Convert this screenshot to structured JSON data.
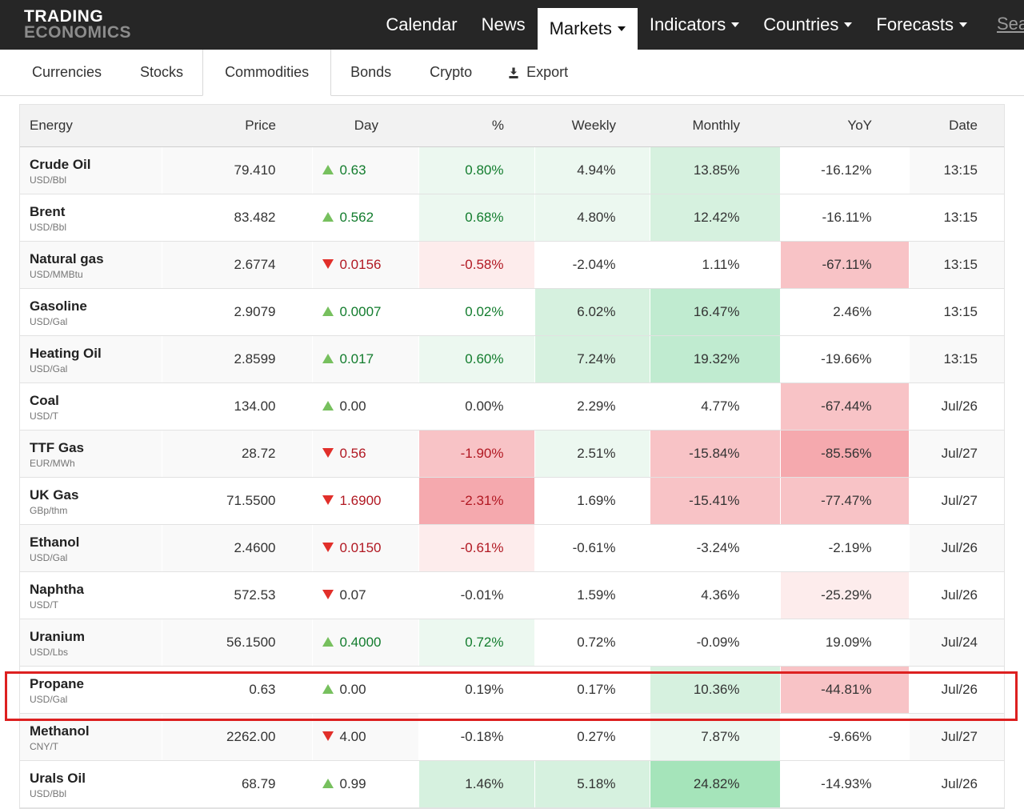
{
  "brand": {
    "line1": "TRADING",
    "line2": "ECONOMICS"
  },
  "top_nav": {
    "items": [
      {
        "label": "Calendar",
        "caret": false,
        "active": false
      },
      {
        "label": "News",
        "caret": false,
        "active": false
      },
      {
        "label": "Markets",
        "caret": true,
        "active": true
      },
      {
        "label": "Indicators",
        "caret": true,
        "active": false
      },
      {
        "label": "Countries",
        "caret": true,
        "active": false
      },
      {
        "label": "Forecasts",
        "caret": true,
        "active": false
      }
    ],
    "search_label": "Search"
  },
  "sub_nav": {
    "tabs": [
      "Currencies",
      "Stocks",
      "Commodities",
      "Bonds",
      "Crypto"
    ],
    "active": "Commodities",
    "export_label": "Export"
  },
  "table": {
    "columns": [
      "Energy",
      "Price",
      "Day",
      "%",
      "Weekly",
      "Monthly",
      "YoY",
      "Date"
    ],
    "rows": [
      {
        "name": "Crude Oil",
        "unit": "USD/Bbl",
        "price": "79.410",
        "dir": "up",
        "day": "0.63",
        "pct": "0.80%",
        "weekly": "4.94%",
        "monthly": "13.85%",
        "yoy": "-16.12%",
        "date": "13:15",
        "tone": "green",
        "bg": {
          "pct": "g1",
          "weekly": "g1",
          "monthly": "g2"
        }
      },
      {
        "name": "Brent",
        "unit": "USD/Bbl",
        "price": "83.482",
        "dir": "up",
        "day": "0.562",
        "pct": "0.68%",
        "weekly": "4.80%",
        "monthly": "12.42%",
        "yoy": "-16.11%",
        "date": "13:15",
        "tone": "green",
        "bg": {
          "pct": "g1",
          "weekly": "g1",
          "monthly": "g2"
        }
      },
      {
        "name": "Natural gas",
        "unit": "USD/MMBtu",
        "price": "2.6774",
        "dir": "down",
        "day": "0.0156",
        "pct": "-0.58%",
        "weekly": "-2.04%",
        "monthly": "1.11%",
        "yoy": "-67.11%",
        "date": "13:15",
        "tone": "red",
        "bg": {
          "pct": "r1",
          "yoy": "r3"
        }
      },
      {
        "name": "Gasoline",
        "unit": "USD/Gal",
        "price": "2.9079",
        "dir": "up",
        "day": "0.0007",
        "pct": "0.02%",
        "weekly": "6.02%",
        "monthly": "16.47%",
        "yoy": "2.46%",
        "date": "13:15",
        "tone": "green",
        "bg": {
          "weekly": "g2",
          "monthly": "g3"
        }
      },
      {
        "name": "Heating Oil",
        "unit": "USD/Gal",
        "price": "2.8599",
        "dir": "up",
        "day": "0.017",
        "pct": "0.60%",
        "weekly": "7.24%",
        "monthly": "19.32%",
        "yoy": "-19.66%",
        "date": "13:15",
        "tone": "green",
        "bg": {
          "pct": "g1",
          "weekly": "g2",
          "monthly": "g3"
        }
      },
      {
        "name": "Coal",
        "unit": "USD/T",
        "price": "134.00",
        "dir": "up",
        "day": "0.00",
        "pct": "0.00%",
        "weekly": "2.29%",
        "monthly": "4.77%",
        "yoy": "-67.44%",
        "date": "Jul/26",
        "tone": "dark",
        "bg": {
          "yoy": "r3"
        }
      },
      {
        "name": "TTF Gas",
        "unit": "EUR/MWh",
        "price": "28.72",
        "dir": "down",
        "day": "0.56",
        "pct": "-1.90%",
        "weekly": "2.51%",
        "monthly": "-15.84%",
        "yoy": "-85.56%",
        "date": "Jul/27",
        "tone": "red",
        "bg": {
          "pct": "r3",
          "weekly": "g1",
          "monthly": "r3",
          "yoy": "r4"
        }
      },
      {
        "name": "UK Gas",
        "unit": "GBp/thm",
        "price": "71.5500",
        "dir": "down",
        "day": "1.6900",
        "pct": "-2.31%",
        "weekly": "1.69%",
        "monthly": "-15.41%",
        "yoy": "-77.47%",
        "date": "Jul/27",
        "tone": "red",
        "bg": {
          "pct": "r4",
          "monthly": "r3",
          "yoy": "r3"
        }
      },
      {
        "name": "Ethanol",
        "unit": "USD/Gal",
        "price": "2.4600",
        "dir": "down",
        "day": "0.0150",
        "pct": "-0.61%",
        "weekly": "-0.61%",
        "monthly": "-3.24%",
        "yoy": "-2.19%",
        "date": "Jul/26",
        "tone": "red",
        "bg": {
          "pct": "r1"
        }
      },
      {
        "name": "Naphtha",
        "unit": "USD/T",
        "price": "572.53",
        "dir": "down",
        "day": "0.07",
        "pct": "-0.01%",
        "weekly": "1.59%",
        "monthly": "4.36%",
        "yoy": "-25.29%",
        "date": "Jul/26",
        "tone": "dark",
        "bg": {
          "yoy": "r1"
        }
      },
      {
        "name": "Uranium",
        "unit": "USD/Lbs",
        "price": "56.1500",
        "dir": "up",
        "day": "0.4000",
        "pct": "0.72%",
        "weekly": "0.72%",
        "monthly": "-0.09%",
        "yoy": "19.09%",
        "date": "Jul/24",
        "tone": "green",
        "bg": {
          "pct": "g1"
        }
      },
      {
        "name": "Propane",
        "unit": "USD/Gal",
        "price": "0.63",
        "dir": "up",
        "day": "0.00",
        "pct": "0.19%",
        "weekly": "0.17%",
        "monthly": "10.36%",
        "yoy": "-44.81%",
        "date": "Jul/26",
        "tone": "dark",
        "bg": {
          "monthly": "g2",
          "yoy": "r3"
        }
      },
      {
        "name": "Methanol",
        "unit": "CNY/T",
        "price": "2262.00",
        "dir": "down",
        "day": "4.00",
        "pct": "-0.18%",
        "weekly": "0.27%",
        "monthly": "7.87%",
        "yoy": "-9.66%",
        "date": "Jul/27",
        "tone": "dark",
        "bg": {
          "monthly": "g1"
        }
      },
      {
        "name": "Urals Oil",
        "unit": "USD/Bbl",
        "price": "68.79",
        "dir": "up",
        "day": "0.99",
        "pct": "1.46%",
        "weekly": "5.18%",
        "monthly": "24.82%",
        "yoy": "-14.93%",
        "date": "Jul/26",
        "tone": "dark",
        "bg": {
          "pct": "g2",
          "weekly": "g2",
          "monthly": "g4"
        },
        "highlighted": true
      }
    ]
  },
  "palette": {
    "nav_bg": "#262626",
    "green_text": "#127c2d",
    "red_text": "#b11822",
    "up_arrow": "#77c05e",
    "down_arrow": "#e12f2a",
    "g1": "#ecf8f0",
    "g2": "#d6f1df",
    "g3": "#c0ebd0",
    "g4": "#a5e4ba",
    "r1": "#fdecec",
    "r2": "#fad8da",
    "r3": "#f8c3c6",
    "r4": "#f5a9ae",
    "annotation_red": "#dd2020"
  }
}
